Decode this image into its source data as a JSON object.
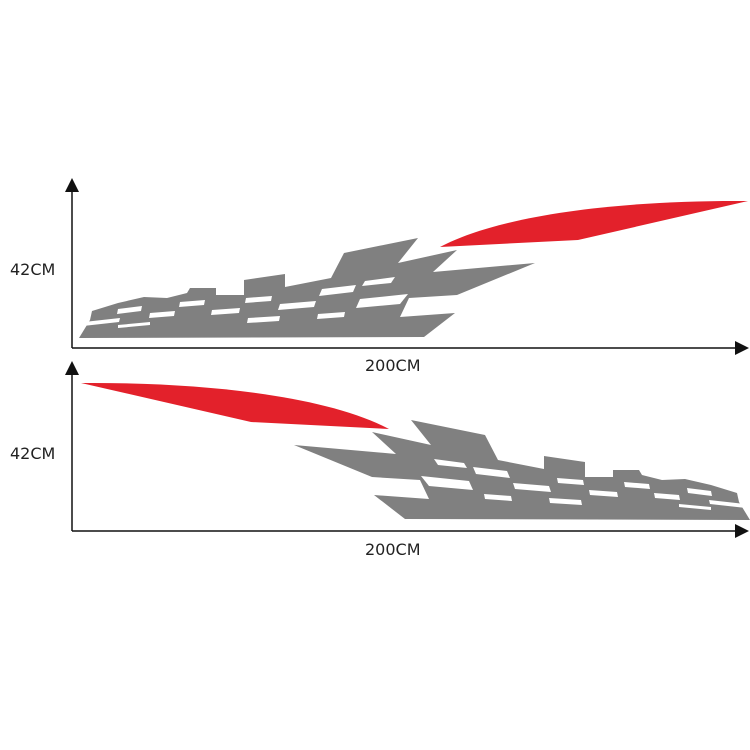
{
  "top_diagram": {
    "height_label": "42CM",
    "width_label": "200CM"
  },
  "bottom_diagram": {
    "height_label": "42CM",
    "width_label": "200CM"
  },
  "colors": {
    "checker": "#808080",
    "accent": "#e3212b",
    "axis": "#111111"
  }
}
